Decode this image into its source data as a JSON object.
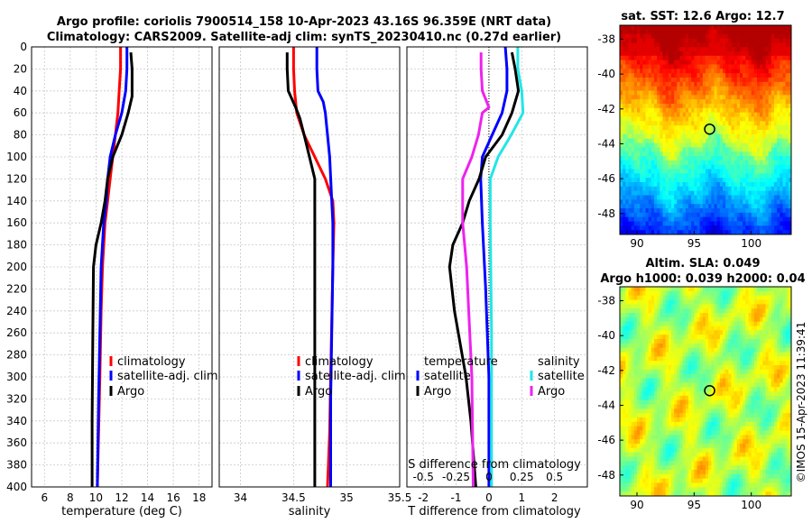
{
  "header": {
    "title_line1": "Argo profile: coriolis 7900514_158 10-Apr-2023 43.16S 96.359E (NRT data)",
    "title_line2": "Climatology: CARS2009. Satellite-adj clim: synTS_20230410.nc (0.27d earlier)"
  },
  "credit": "©IMOS 15-Apr-2023 11:39:41",
  "colors": {
    "climatology": "#ff0000",
    "satellite": "#0000ff",
    "argo": "#000000",
    "salinity_satellite": "#22e6e6",
    "salinity_argo": "#ee22ee",
    "grid": "#c8c8c8"
  },
  "chart_data": [
    {
      "id": "temperature",
      "type": "line",
      "xlabel": "temperature (deg C)",
      "ylabel": "",
      "xlim": [
        5,
        19
      ],
      "ylim": [
        400,
        0
      ],
      "xticks": [
        6,
        8,
        10,
        12,
        14,
        16,
        18
      ],
      "xtick_labels": [
        "6",
        "8",
        "10",
        "12",
        "14",
        "16",
        "18"
      ],
      "yticks": [
        0,
        20,
        40,
        60,
        80,
        100,
        120,
        140,
        160,
        180,
        200,
        220,
        240,
        260,
        280,
        300,
        320,
        340,
        360,
        380,
        400
      ],
      "ytick_labels": [
        "0",
        "20",
        "40",
        "60",
        "80",
        "100",
        "120",
        "140",
        "160",
        "180",
        "200",
        "220",
        "240",
        "260",
        "280",
        "300",
        "320",
        "340",
        "360",
        "380",
        "400"
      ],
      "grid": true,
      "legend": [
        "climatology",
        "satellite-adj. clim",
        "Argo"
      ],
      "series": [
        {
          "name": "climatology",
          "color": "#ff0000",
          "x": [
            11.9,
            11.9,
            11.8,
            11.7,
            11.5,
            11.3,
            11.1,
            10.9,
            10.7,
            10.5,
            10.4,
            10.3,
            10.2,
            10.1
          ],
          "y": [
            0,
            20,
            40,
            60,
            80,
            100,
            120,
            140,
            160,
            200,
            240,
            300,
            350,
            400
          ]
        },
        {
          "name": "satellite-adj. clim",
          "color": "#0000ff",
          "x": [
            12.4,
            12.4,
            12.3,
            12.0,
            11.5,
            11.1,
            10.9,
            10.8,
            10.6,
            10.4,
            10.3,
            10.2,
            10.1
          ],
          "y": [
            0,
            20,
            40,
            60,
            80,
            100,
            120,
            140,
            160,
            200,
            260,
            320,
            400
          ]
        },
        {
          "name": "Argo",
          "color": "#000000",
          "x": [
            12.7,
            12.8,
            12.8,
            12.5,
            12.0,
            11.3,
            10.9,
            10.7,
            10.4,
            10.0,
            9.8,
            9.75,
            9.7,
            9.7
          ],
          "y": [
            5,
            20,
            45,
            60,
            80,
            100,
            120,
            140,
            160,
            180,
            200,
            260,
            340,
            400
          ]
        }
      ]
    },
    {
      "id": "salinity",
      "type": "line",
      "xlabel": "salinity",
      "xlim": [
        33.8,
        35.5
      ],
      "ylim": [
        400,
        0
      ],
      "xticks": [
        34,
        34.5,
        35,
        35.5
      ],
      "xtick_labels": [
        "34",
        "34.5",
        "35",
        "35.5"
      ],
      "grid": true,
      "legend": [
        "climatology",
        "satellite-adj. clim",
        "Argo"
      ],
      "series": [
        {
          "name": "climatology",
          "color": "#ff0000",
          "x": [
            34.5,
            34.5,
            34.51,
            34.53,
            34.6,
            34.7,
            34.8,
            34.87,
            34.88,
            34.87,
            34.86,
            34.85,
            34.84,
            34.82
          ],
          "y": [
            0,
            20,
            40,
            60,
            80,
            100,
            120,
            140,
            160,
            200,
            250,
            300,
            350,
            400
          ]
        },
        {
          "name": "satellite-adj. clim",
          "color": "#0000ff",
          "x": [
            34.72,
            34.72,
            34.73,
            34.78,
            34.8,
            34.82,
            34.84,
            34.86,
            34.87,
            34.87,
            34.86,
            34.85,
            34.85
          ],
          "y": [
            0,
            20,
            40,
            50,
            60,
            80,
            100,
            140,
            160,
            200,
            260,
            320,
            400
          ]
        },
        {
          "name": "Argo",
          "color": "#000000",
          "x": [
            34.44,
            34.44,
            34.45,
            34.52,
            34.56,
            34.6,
            34.65,
            34.7,
            34.7,
            34.7,
            34.7
          ],
          "y": [
            5,
            20,
            40,
            55,
            65,
            80,
            100,
            120,
            140,
            200,
            400
          ]
        }
      ]
    },
    {
      "id": "difference",
      "type": "line",
      "xlabel": "T difference from climatology",
      "top_label": "S difference from climatology",
      "xlim": [
        -2.5,
        3
      ],
      "ylim": [
        400,
        0
      ],
      "xticks": [
        -2,
        -1,
        0,
        1,
        2
      ],
      "xtick_labels": [
        "-2",
        "-1",
        "0",
        "1",
        "2"
      ],
      "s_ticks": [
        -0.5,
        -0.25,
        0,
        0.25,
        0.5
      ],
      "s_tick_labels": [
        "-0.5",
        "-0.25",
        "0",
        "0.25",
        "0.5"
      ],
      "grid": true,
      "legend_left_title": "temperature",
      "legend_right_title": "salinity",
      "legend": [
        "satellite",
        "Argo",
        "satellite",
        "Argo"
      ],
      "series": [
        {
          "name": "temperature satellite",
          "color": "#0000ff",
          "x": [
            0.5,
            0.55,
            0.55,
            0.4,
            0.1,
            -0.2,
            -0.25,
            -0.2,
            -0.1,
            0.0,
            0.0
          ],
          "y": [
            0,
            20,
            40,
            60,
            80,
            100,
            120,
            160,
            220,
            300,
            400
          ]
        },
        {
          "name": "temperature Argo",
          "color": "#000000",
          "x": [
            0.7,
            0.8,
            0.9,
            0.7,
            0.4,
            -0.1,
            -0.3,
            -0.6,
            -0.8,
            -1.1,
            -1.2,
            -1.05,
            -0.7,
            -0.55,
            -0.4
          ],
          "y": [
            5,
            20,
            40,
            60,
            80,
            100,
            120,
            140,
            160,
            180,
            200,
            240,
            300,
            340,
            400
          ]
        },
        {
          "name": "salinity satellite",
          "color": "#22e6e6",
          "x": [
            0.22,
            0.22,
            0.25,
            0.26,
            0.17,
            0.07,
            0.01,
            0.01,
            0.02,
            0.02
          ],
          "y": [
            0,
            20,
            40,
            60,
            80,
            100,
            120,
            160,
            260,
            400
          ]
        },
        {
          "name": "salinity Argo",
          "color": "#ee22ee",
          "x": [
            -0.06,
            -0.06,
            -0.05,
            0.0,
            -0.05,
            -0.08,
            -0.13,
            -0.2,
            -0.2,
            -0.17,
            -0.13,
            -0.12
          ],
          "y": [
            5,
            20,
            40,
            55,
            60,
            80,
            100,
            120,
            160,
            200,
            300,
            400
          ]
        }
      ]
    },
    {
      "id": "sst_map",
      "type": "heatmap",
      "title": "sat. SST: 12.6 Argo: 12.7",
      "xlim": [
        88.5,
        103.5
      ],
      "ylim": [
        -49.2,
        -37.2
      ],
      "xticks": [
        90,
        95,
        100
      ],
      "xtick_labels": [
        "90",
        "95",
        "100"
      ],
      "yticks": [
        -38,
        -40,
        -42,
        -44,
        -46,
        -48
      ],
      "ytick_labels": [
        "-38",
        "-40",
        "-42",
        "-44",
        "-46",
        "-48"
      ],
      "argo_position": {
        "lon": 96.36,
        "lat": -43.16
      },
      "legend": "none"
    },
    {
      "id": "sla_map",
      "type": "heatmap",
      "title_line1": "Altim. SLA: 0.049",
      "title_line2": "Argo h1000: 0.039 h2000: 0.04",
      "xlim": [
        88.5,
        103.5
      ],
      "ylim": [
        -49.2,
        -37.2
      ],
      "xticks": [
        90,
        95,
        100
      ],
      "xtick_labels": [
        "90",
        "95",
        "100"
      ],
      "yticks": [
        -38,
        -40,
        -42,
        -44,
        -46,
        -48
      ],
      "ytick_labels": [
        "-38",
        "-40",
        "-42",
        "-44",
        "-46",
        "-48"
      ],
      "argo_position": {
        "lon": 96.36,
        "lat": -43.16
      },
      "legend": "none"
    }
  ]
}
